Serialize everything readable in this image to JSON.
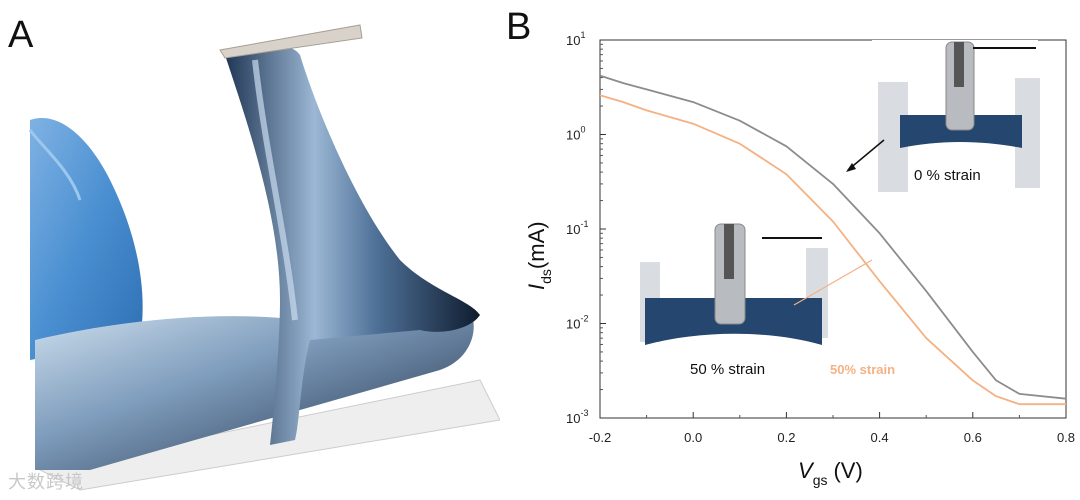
{
  "panels": {
    "a_label": "A",
    "b_label": "B"
  },
  "watermark": "大数跨境",
  "chart_data": {
    "type": "line",
    "title": "",
    "xlabel_main": "V",
    "xlabel_sub": "gs",
    "xlabel_unit": "(V)",
    "ylabel_main": "I",
    "ylabel_sub": "ds",
    "ylabel_unit": "(mA)",
    "xlim": [
      -0.2,
      0.8
    ],
    "ylim_log10": [
      -3,
      1
    ],
    "yscale": "log",
    "x_ticks": [
      "-0.2",
      "0.0",
      "0.2",
      "0.4",
      "0.6",
      "0.8"
    ],
    "y_ticks": [
      {
        "base": "10",
        "exp": "1"
      },
      {
        "base": "10",
        "exp": "0"
      },
      {
        "base": "10",
        "exp": "-1"
      },
      {
        "base": "10",
        "exp": "-2"
      },
      {
        "base": "10",
        "exp": "-3"
      }
    ],
    "series": [
      {
        "name": "",
        "color": "#8c8c8c",
        "x": [
          -0.2,
          -0.15,
          -0.1,
          0.0,
          0.1,
          0.2,
          0.3,
          0.4,
          0.5,
          0.6,
          0.65,
          0.7,
          0.8
        ],
        "y": [
          4.2,
          3.5,
          3.0,
          2.2,
          1.4,
          0.75,
          0.3,
          0.09,
          0.022,
          0.005,
          0.0025,
          0.0018,
          0.0016
        ]
      },
      {
        "name": "50%  strain",
        "color": "#f4b183",
        "x": [
          -0.2,
          -0.15,
          -0.1,
          0.0,
          0.1,
          0.2,
          0.3,
          0.4,
          0.5,
          0.6,
          0.65,
          0.7,
          0.8
        ],
        "y": [
          2.6,
          2.2,
          1.8,
          1.3,
          0.8,
          0.38,
          0.12,
          0.028,
          0.007,
          0.0025,
          0.0017,
          0.0014,
          0.0014
        ]
      }
    ],
    "insets": [
      {
        "label": "0 % strain"
      },
      {
        "label": "50 % strain"
      }
    ]
  }
}
